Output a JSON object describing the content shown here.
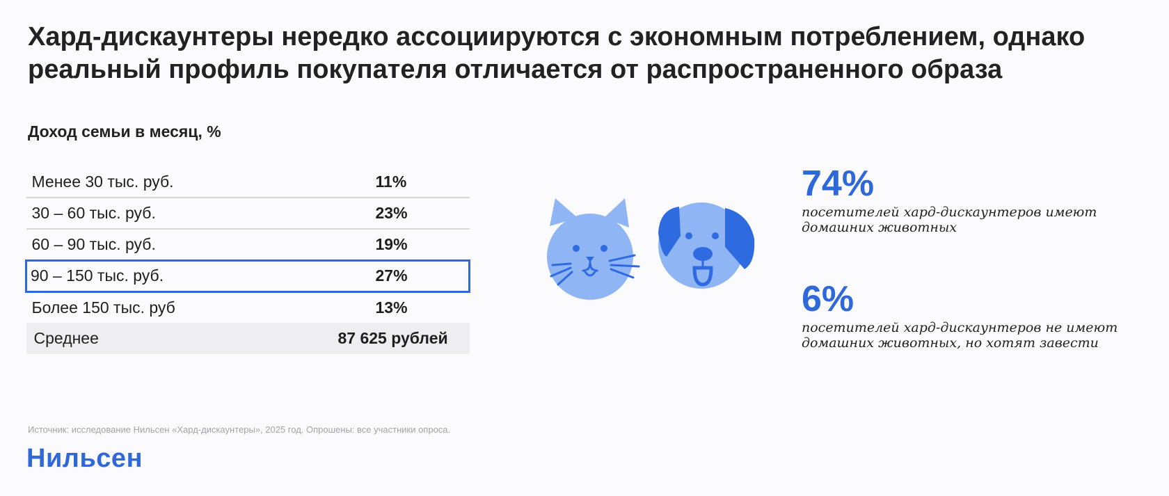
{
  "title_lines": [
    "Хард-дискаунтеры нередко ассоциируются с экономным потреблением, однако",
    "реальный профиль покупателя отличается от распространенного образа"
  ],
  "colors": {
    "accent": "#2f68d8",
    "pet_light": "#8fb5f5",
    "pet_dark": "#2f6be0"
  },
  "chart_data": {
    "type": "table",
    "title": "Доход семьи в месяц, %",
    "rows": [
      {
        "label": "Менее 30 тыс. руб.",
        "value": "11%",
        "highlighted": false
      },
      {
        "label": "30 – 60 тыс. руб.",
        "value": "23%",
        "highlighted": false
      },
      {
        "label": "60 – 90 тыс. руб.",
        "value": "19%",
        "highlighted": false
      },
      {
        "label": "90 – 150 тыс. руб.",
        "value": "27%",
        "highlighted": true
      },
      {
        "label": "Более 150 тыс. руб",
        "value": "13%",
        "highlighted": false
      }
    ],
    "average": {
      "label": "Среднее",
      "value": "87 625 рублей"
    }
  },
  "pets": {
    "icons": [
      "cat-icon",
      "dog-icon"
    ]
  },
  "stats": [
    {
      "value": "74%",
      "lines": [
        "посетителей хард-дискаунтеров имеют",
        "домашних животных"
      ]
    },
    {
      "value": "6%",
      "lines": [
        "посетителей хард-дискаунтеров не имеют",
        "домашних животных, но хотят завести"
      ]
    }
  ],
  "footer": {
    "source": "Источник: исследование Нильсен «Хард-дискаунтеры», 2025 год. Опрошены: все участники опроса.",
    "logo": "Нильсен"
  }
}
